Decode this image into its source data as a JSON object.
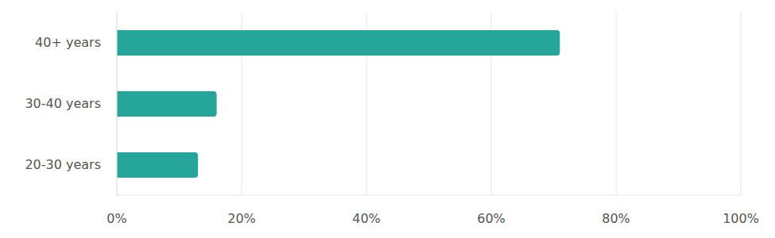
{
  "chart_data": {
    "type": "bar",
    "orientation": "horizontal",
    "categories": [
      "40+ years",
      "30-40 years",
      "20-30 years"
    ],
    "values": [
      71,
      16,
      13
    ],
    "color": "#26a69a",
    "xlim": [
      0,
      100
    ],
    "xticks": [
      {
        "value": 0,
        "label": "0%"
      },
      {
        "value": 20,
        "label": "20%"
      },
      {
        "value": 40,
        "label": "40%"
      },
      {
        "value": 60,
        "label": "60%"
      },
      {
        "value": 80,
        "label": "80%"
      },
      {
        "value": 100,
        "label": "100%"
      }
    ],
    "grid": true
  }
}
